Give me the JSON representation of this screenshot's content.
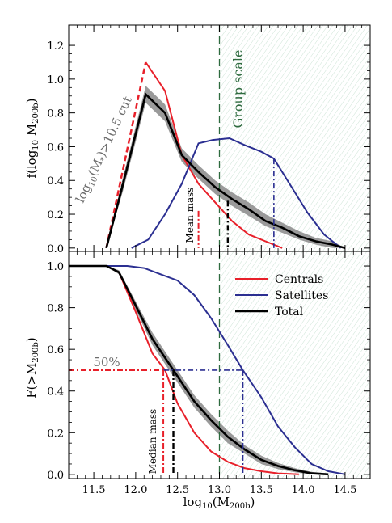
{
  "colors": {
    "centrals": "#e8202a",
    "satellites": "#2b2f91",
    "total": "#000000",
    "band": "#9a9a9a",
    "group": "#2e6b3f",
    "hatch": "#b7d9c4",
    "pct50": "#6d6d6d"
  },
  "chart_data": [
    {
      "type": "line",
      "title": "",
      "xlabel": "",
      "ylabel": "f(log10 M200b)",
      "xlim": [
        11.2,
        14.8
      ],
      "ylim": [
        -0.02,
        1.32
      ],
      "x_ticks": [
        11.5,
        12.0,
        12.5,
        13.0,
        13.5,
        14.0,
        14.5
      ],
      "y_ticks": [
        "0.0",
        "0.2",
        "0.4",
        "0.6",
        "0.8",
        "1.0",
        "1.2"
      ],
      "series": [
        {
          "name": "Centrals",
          "x": [
            12.12,
            12.35,
            12.55,
            12.75,
            12.95,
            13.15,
            13.35,
            13.55,
            13.75
          ],
          "y": [
            1.1,
            0.93,
            0.55,
            0.38,
            0.27,
            0.16,
            0.08,
            0.04,
            0.0
          ]
        },
        {
          "name": "Satellites",
          "x": [
            11.95,
            12.15,
            12.35,
            12.55,
            12.75,
            12.92,
            13.12,
            13.3,
            13.5,
            13.65,
            13.85,
            14.05,
            14.25,
            14.45
          ],
          "y": [
            0.0,
            0.05,
            0.2,
            0.38,
            0.62,
            0.64,
            0.65,
            0.61,
            0.57,
            0.53,
            0.37,
            0.21,
            0.08,
            0.0
          ]
        },
        {
          "name": "Total",
          "x": [
            11.65,
            11.85,
            12.12,
            12.35,
            12.55,
            12.75,
            12.95,
            13.15,
            13.35,
            13.55,
            13.75,
            13.95,
            14.15,
            14.35,
            14.5
          ],
          "y": [
            0.0,
            0.38,
            0.91,
            0.8,
            0.55,
            0.45,
            0.36,
            0.29,
            0.23,
            0.16,
            0.12,
            0.07,
            0.04,
            0.02,
            0.0
          ]
        },
        {
          "name": "Total lower",
          "x": [
            11.65,
            11.85,
            12.12,
            12.35,
            12.55,
            12.75,
            12.95,
            13.15,
            13.35,
            13.55,
            13.75,
            13.95,
            14.15,
            14.35,
            14.5
          ],
          "y": [
            0.0,
            0.34,
            0.86,
            0.75,
            0.51,
            0.41,
            0.32,
            0.25,
            0.19,
            0.13,
            0.09,
            0.05,
            0.02,
            0.0,
            0.0
          ]
        },
        {
          "name": "Total upper",
          "x": [
            11.65,
            11.85,
            12.12,
            12.35,
            12.55,
            12.75,
            12.95,
            13.15,
            13.35,
            13.55,
            13.75,
            13.95,
            14.15,
            14.35,
            14.5
          ],
          "y": [
            0.0,
            0.42,
            0.96,
            0.85,
            0.59,
            0.49,
            0.4,
            0.33,
            0.27,
            0.2,
            0.15,
            0.1,
            0.06,
            0.04,
            0.0
          ]
        },
        {
          "name": "cut (centrals)",
          "x": [
            11.65,
            12.12
          ],
          "y": [
            0.0,
            1.1
          ]
        },
        {
          "name": "cut (total)",
          "x": [
            11.65,
            12.12
          ],
          "y": [
            0.0,
            0.91
          ]
        }
      ],
      "mean_mass": {
        "centrals": [
          12.75,
          0.22
        ],
        "total": [
          13.1,
          0.28
        ],
        "satellites": [
          13.65,
          0.53
        ]
      },
      "group_scale_x": 13.0,
      "annotations": [
        "log10(M*)>10.5 cut",
        "Group scale",
        "Mean mass"
      ]
    },
    {
      "type": "line",
      "title": "",
      "xlabel": "log10(M200b)",
      "ylabel": "F(>M200b)",
      "xlim": [
        11.2,
        14.8
      ],
      "ylim": [
        -0.02,
        1.07
      ],
      "x_ticks": [
        "11.5",
        "12.0",
        "12.5",
        "13.0",
        "13.5",
        "14.0",
        "14.5"
      ],
      "y_ticks": [
        "0.0",
        "0.2",
        "0.4",
        "0.6",
        "0.8",
        "1.0"
      ],
      "legend": {
        "placement": "top-right",
        "entries": [
          "Centrals",
          "Satellites",
          "Total"
        ]
      },
      "series": [
        {
          "name": "Centrals",
          "x": [
            11.2,
            11.5,
            11.65,
            11.8,
            12.0,
            12.2,
            12.35,
            12.5,
            12.7,
            12.9,
            13.1,
            13.3,
            13.5,
            13.7,
            13.95
          ],
          "y": [
            1.0,
            1.0,
            1.0,
            0.97,
            0.78,
            0.58,
            0.5,
            0.34,
            0.2,
            0.11,
            0.06,
            0.03,
            0.015,
            0.005,
            0.0
          ]
        },
        {
          "name": "Satellites",
          "x": [
            11.2,
            11.9,
            12.1,
            12.3,
            12.5,
            12.7,
            12.9,
            13.1,
            13.28,
            13.5,
            13.7,
            13.9,
            14.1,
            14.3,
            14.5
          ],
          "y": [
            1.0,
            1.0,
            0.99,
            0.96,
            0.93,
            0.86,
            0.75,
            0.62,
            0.5,
            0.37,
            0.23,
            0.13,
            0.05,
            0.015,
            0.0
          ]
        },
        {
          "name": "Total",
          "x": [
            11.2,
            11.5,
            11.65,
            11.8,
            12.0,
            12.2,
            12.45,
            12.7,
            12.9,
            13.1,
            13.3,
            13.5,
            13.7,
            13.9,
            14.1,
            14.3
          ],
          "y": [
            1.0,
            1.0,
            1.0,
            0.97,
            0.81,
            0.65,
            0.5,
            0.35,
            0.26,
            0.18,
            0.12,
            0.07,
            0.04,
            0.02,
            0.005,
            0.0
          ]
        },
        {
          "name": "Total lower",
          "x": [
            11.2,
            11.5,
            11.65,
            11.8,
            12.0,
            12.2,
            12.45,
            12.7,
            12.9,
            13.1,
            13.3,
            13.5,
            13.7,
            13.9,
            14.1,
            14.3
          ],
          "y": [
            1.0,
            1.0,
            1.0,
            0.96,
            0.79,
            0.62,
            0.47,
            0.32,
            0.23,
            0.15,
            0.1,
            0.05,
            0.025,
            0.01,
            0.0,
            0.0
          ]
        },
        {
          "name": "Total upper",
          "x": [
            11.2,
            11.5,
            11.65,
            11.8,
            12.0,
            12.2,
            12.45,
            12.7,
            12.9,
            13.1,
            13.3,
            13.5,
            13.7,
            13.9,
            14.1,
            14.3
          ],
          "y": [
            1.0,
            1.0,
            1.0,
            0.98,
            0.83,
            0.68,
            0.53,
            0.38,
            0.29,
            0.21,
            0.14,
            0.09,
            0.055,
            0.03,
            0.012,
            0.004
          ]
        }
      ],
      "median_mass": {
        "centrals": 12.33,
        "total": 12.45,
        "satellites": 13.28
      },
      "percent_label": "50%",
      "percent_level": 0.5,
      "group_scale_x": 13.0,
      "annotations": [
        "Median mass"
      ]
    }
  ]
}
